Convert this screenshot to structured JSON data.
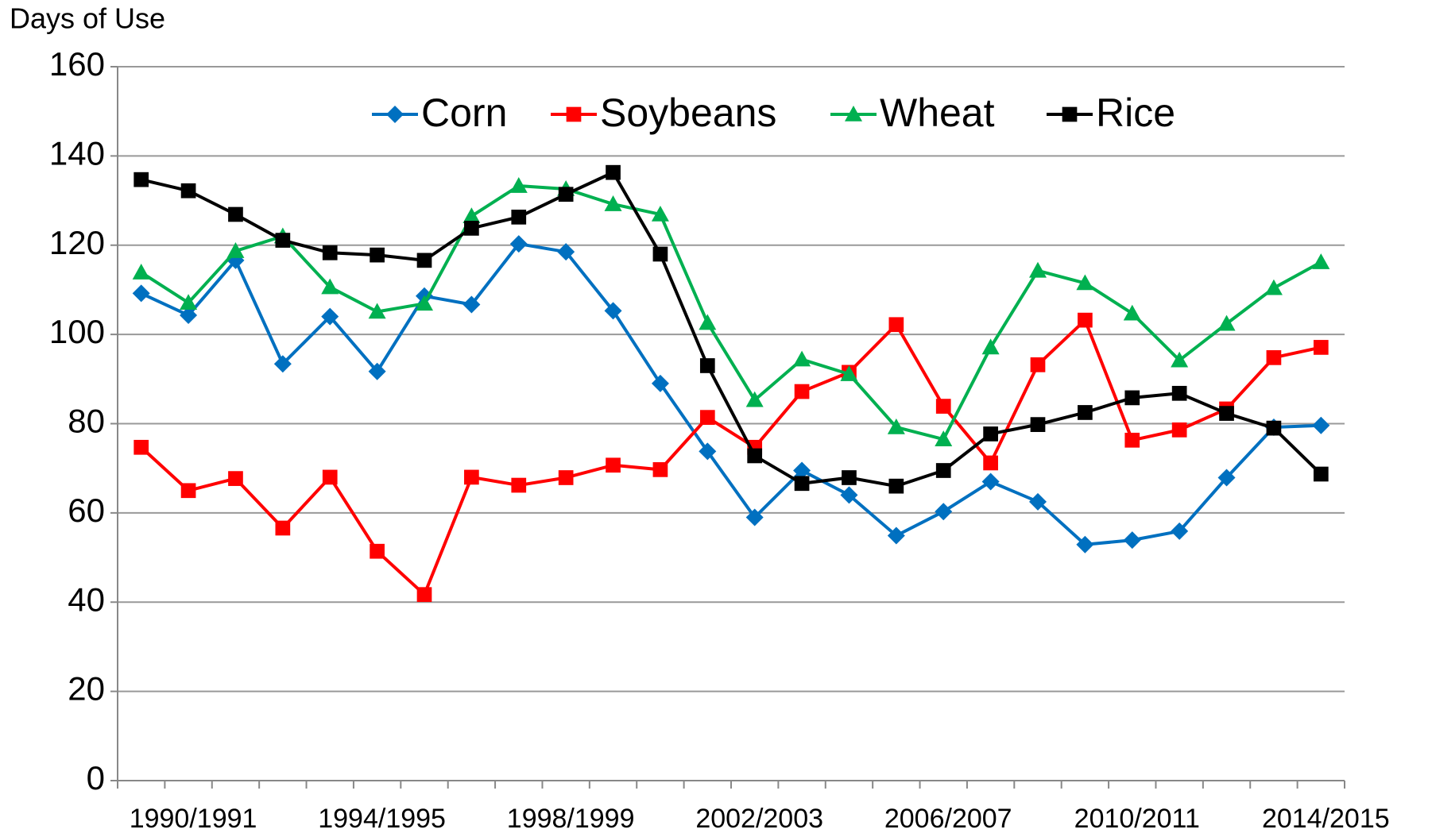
{
  "chart_data": {
    "type": "line",
    "y_axis_label": "Days of Use",
    "categories": [
      null,
      "1990/1991",
      null,
      null,
      null,
      "1994/1995",
      null,
      null,
      null,
      "1998/1999",
      null,
      null,
      null,
      "2002/2003",
      null,
      null,
      null,
      "2006/2007",
      null,
      null,
      null,
      "2010/2011",
      null,
      null,
      null,
      "2014/2015"
    ],
    "series": [
      {
        "name": "Corn",
        "color": "#0070C0",
        "marker": "diamond",
        "values": [
          109.2,
          104.3,
          116.6,
          93.4,
          104,
          91.7,
          108.6,
          106.7,
          120.3,
          118.5,
          105.3,
          89,
          73.8,
          59,
          69.5,
          64,
          54.9,
          60.3,
          67,
          62.5,
          52.9,
          53.9,
          55.9,
          67.9,
          79.2,
          79.6
        ]
      },
      {
        "name": "Soybeans",
        "color": "#FF0000",
        "marker": "square",
        "values": [
          74.7,
          65,
          67.7,
          56.6,
          68,
          51.4,
          41.7,
          68,
          66.2,
          67.9,
          70.7,
          69.7,
          81.4,
          74.7,
          87.2,
          91.5,
          102.2,
          83.9,
          71.2,
          93.2,
          103.2,
          76.3,
          78.6,
          83.3,
          94.8,
          97.1
        ]
      },
      {
        "name": "Wheat",
        "color": "#00B050",
        "marker": "triangle",
        "values": [
          113.9,
          107.1,
          118.7,
          122,
          110.6,
          105.1,
          106.9,
          126.5,
          133.3,
          132.6,
          129.2,
          126.9,
          102.6,
          85.3,
          94.4,
          91.1,
          79.2,
          76.5,
          97.1,
          114.3,
          111.5,
          104.7,
          94.2,
          102.4,
          110.4,
          116.2
        ]
      },
      {
        "name": "Rice",
        "color": "#000000",
        "marker": "square",
        "values": [
          134.7,
          132.2,
          126.9,
          121.1,
          118.3,
          117.8,
          116.6,
          123.8,
          126.3,
          131.4,
          136.3,
          118,
          93,
          72.8,
          66.6,
          67.9,
          66,
          69.5,
          77.7,
          79.8,
          82.5,
          85.8,
          86.8,
          82.3,
          79,
          68.7
        ]
      }
    ],
    "ylim": [
      0,
      160
    ],
    "yticks": [
      0,
      20,
      40,
      60,
      80,
      100,
      120,
      140,
      160
    ],
    "grid": true,
    "legend": "top"
  }
}
